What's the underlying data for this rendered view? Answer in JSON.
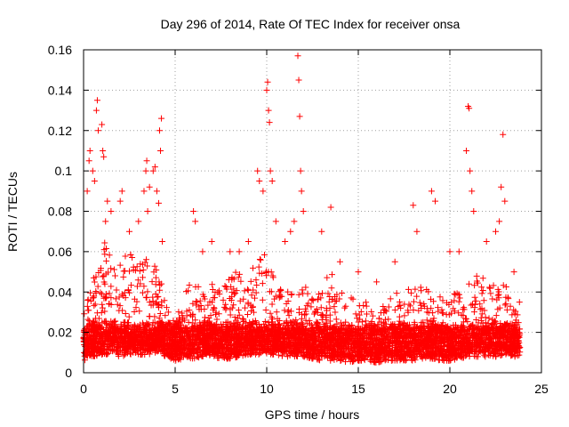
{
  "chart_data": {
    "type": "scatter",
    "title": "Day 296 of 2014, Rate Of TEC Index for receiver onsa",
    "xlabel": "GPS time / hours",
    "ylabel": "ROTI / TECUs",
    "xlim": [
      0,
      25
    ],
    "ylim": [
      0,
      0.16
    ],
    "x_ticks": [
      0,
      5,
      10,
      15,
      20,
      25
    ],
    "x_tick_labels": [
      "0",
      "5",
      "10",
      "15",
      "20",
      "25"
    ],
    "y_ticks": [
      0,
      0.02,
      0.04,
      0.06,
      0.08,
      0.1,
      0.12,
      0.14,
      0.16
    ],
    "y_tick_labels": [
      "0",
      "0.02",
      "0.04",
      "0.06",
      "0.08",
      "0.1",
      "0.12",
      "0.14",
      "0.16"
    ],
    "grid": true,
    "marker": "plus",
    "marker_color": "#ff0000",
    "series": [
      {
        "name": "ROTI",
        "points": [
          [
            0.1,
            0.02
          ],
          [
            0.2,
            0.09
          ],
          [
            0.3,
            0.105
          ],
          [
            0.35,
            0.11
          ],
          [
            0.5,
            0.1
          ],
          [
            0.6,
            0.095
          ],
          [
            0.7,
            0.13
          ],
          [
            0.75,
            0.135
          ],
          [
            0.8,
            0.12
          ],
          [
            1.0,
            0.123
          ],
          [
            1.05,
            0.11
          ],
          [
            1.1,
            0.107
          ],
          [
            1.2,
            0.075
          ],
          [
            1.3,
            0.085
          ],
          [
            1.5,
            0.08
          ],
          [
            2.0,
            0.085
          ],
          [
            2.1,
            0.09
          ],
          [
            2.5,
            0.07
          ],
          [
            3.0,
            0.075
          ],
          [
            3.3,
            0.09
          ],
          [
            3.4,
            0.1
          ],
          [
            3.45,
            0.105
          ],
          [
            3.5,
            0.08
          ],
          [
            3.6,
            0.092
          ],
          [
            3.8,
            0.1
          ],
          [
            3.9,
            0.102
          ],
          [
            4.0,
            0.09
          ],
          [
            4.1,
            0.084
          ],
          [
            4.15,
            0.12
          ],
          [
            4.2,
            0.11
          ],
          [
            4.25,
            0.126
          ],
          [
            4.3,
            0.065
          ],
          [
            6.0,
            0.08
          ],
          [
            6.1,
            0.075
          ],
          [
            6.5,
            0.06
          ],
          [
            7.0,
            0.065
          ],
          [
            8.0,
            0.06
          ],
          [
            8.5,
            0.06
          ],
          [
            9.0,
            0.065
          ],
          [
            9.5,
            0.1
          ],
          [
            9.6,
            0.095
          ],
          [
            9.8,
            0.09
          ],
          [
            10.0,
            0.14
          ],
          [
            10.05,
            0.144
          ],
          [
            10.1,
            0.13
          ],
          [
            10.15,
            0.124
          ],
          [
            10.2,
            0.1
          ],
          [
            10.3,
            0.095
          ],
          [
            10.5,
            0.075
          ],
          [
            11.0,
            0.065
          ],
          [
            11.3,
            0.07
          ],
          [
            11.5,
            0.075
          ],
          [
            11.7,
            0.157
          ],
          [
            11.75,
            0.145
          ],
          [
            11.8,
            0.127
          ],
          [
            11.85,
            0.1
          ],
          [
            11.9,
            0.09
          ],
          [
            12.0,
            0.08
          ],
          [
            13.0,
            0.07
          ],
          [
            13.5,
            0.082
          ],
          [
            14.0,
            0.055
          ],
          [
            15.0,
            0.05
          ],
          [
            16.0,
            0.045
          ],
          [
            17.0,
            0.055
          ],
          [
            18.0,
            0.083
          ],
          [
            18.2,
            0.07
          ],
          [
            19.0,
            0.09
          ],
          [
            19.2,
            0.085
          ],
          [
            20.0,
            0.06
          ],
          [
            20.5,
            0.06
          ],
          [
            20.9,
            0.11
          ],
          [
            21.0,
            0.132
          ],
          [
            21.05,
            0.131
          ],
          [
            21.1,
            0.1
          ],
          [
            21.2,
            0.09
          ],
          [
            21.3,
            0.08
          ],
          [
            22.0,
            0.065
          ],
          [
            22.5,
            0.07
          ],
          [
            22.7,
            0.075
          ],
          [
            22.8,
            0.092
          ],
          [
            22.9,
            0.118
          ],
          [
            23.0,
            0.085
          ],
          [
            23.5,
            0.05
          ],
          [
            23.8,
            0.035
          ]
        ]
      }
    ],
    "density_profile": {
      "description": "envelope of the dense cloud of samples",
      "x": [
        0,
        0.5,
        1,
        1.5,
        2,
        2.5,
        3,
        3.5,
        4,
        4.5,
        5,
        5.5,
        6,
        6.5,
        7,
        7.5,
        8,
        8.5,
        9,
        9.5,
        10,
        10.5,
        11,
        11.5,
        12,
        12.5,
        13,
        13.5,
        14,
        14.5,
        15,
        15.5,
        16,
        16.5,
        17,
        17.5,
        18,
        18.5,
        19,
        19.5,
        20,
        20.5,
        21,
        21.5,
        22,
        22.5,
        23,
        23.5,
        23.8
      ],
      "lower": [
        0.006,
        0.008,
        0.009,
        0.009,
        0.008,
        0.009,
        0.009,
        0.009,
        0.01,
        0.008,
        0.006,
        0.007,
        0.007,
        0.008,
        0.008,
        0.007,
        0.007,
        0.008,
        0.009,
        0.009,
        0.009,
        0.009,
        0.008,
        0.008,
        0.008,
        0.007,
        0.006,
        0.006,
        0.006,
        0.005,
        0.006,
        0.006,
        0.005,
        0.006,
        0.006,
        0.006,
        0.006,
        0.007,
        0.007,
        0.006,
        0.006,
        0.007,
        0.008,
        0.008,
        0.008,
        0.008,
        0.009,
        0.008,
        0.008
      ],
      "upper": [
        0.035,
        0.045,
        0.065,
        0.065,
        0.055,
        0.06,
        0.055,
        0.06,
        0.055,
        0.035,
        0.025,
        0.04,
        0.05,
        0.045,
        0.045,
        0.04,
        0.05,
        0.05,
        0.05,
        0.055,
        0.06,
        0.05,
        0.04,
        0.045,
        0.045,
        0.04,
        0.045,
        0.05,
        0.045,
        0.04,
        0.035,
        0.035,
        0.03,
        0.035,
        0.04,
        0.04,
        0.045,
        0.045,
        0.04,
        0.04,
        0.04,
        0.04,
        0.045,
        0.05,
        0.045,
        0.045,
        0.045,
        0.035,
        0.03
      ]
    }
  }
}
